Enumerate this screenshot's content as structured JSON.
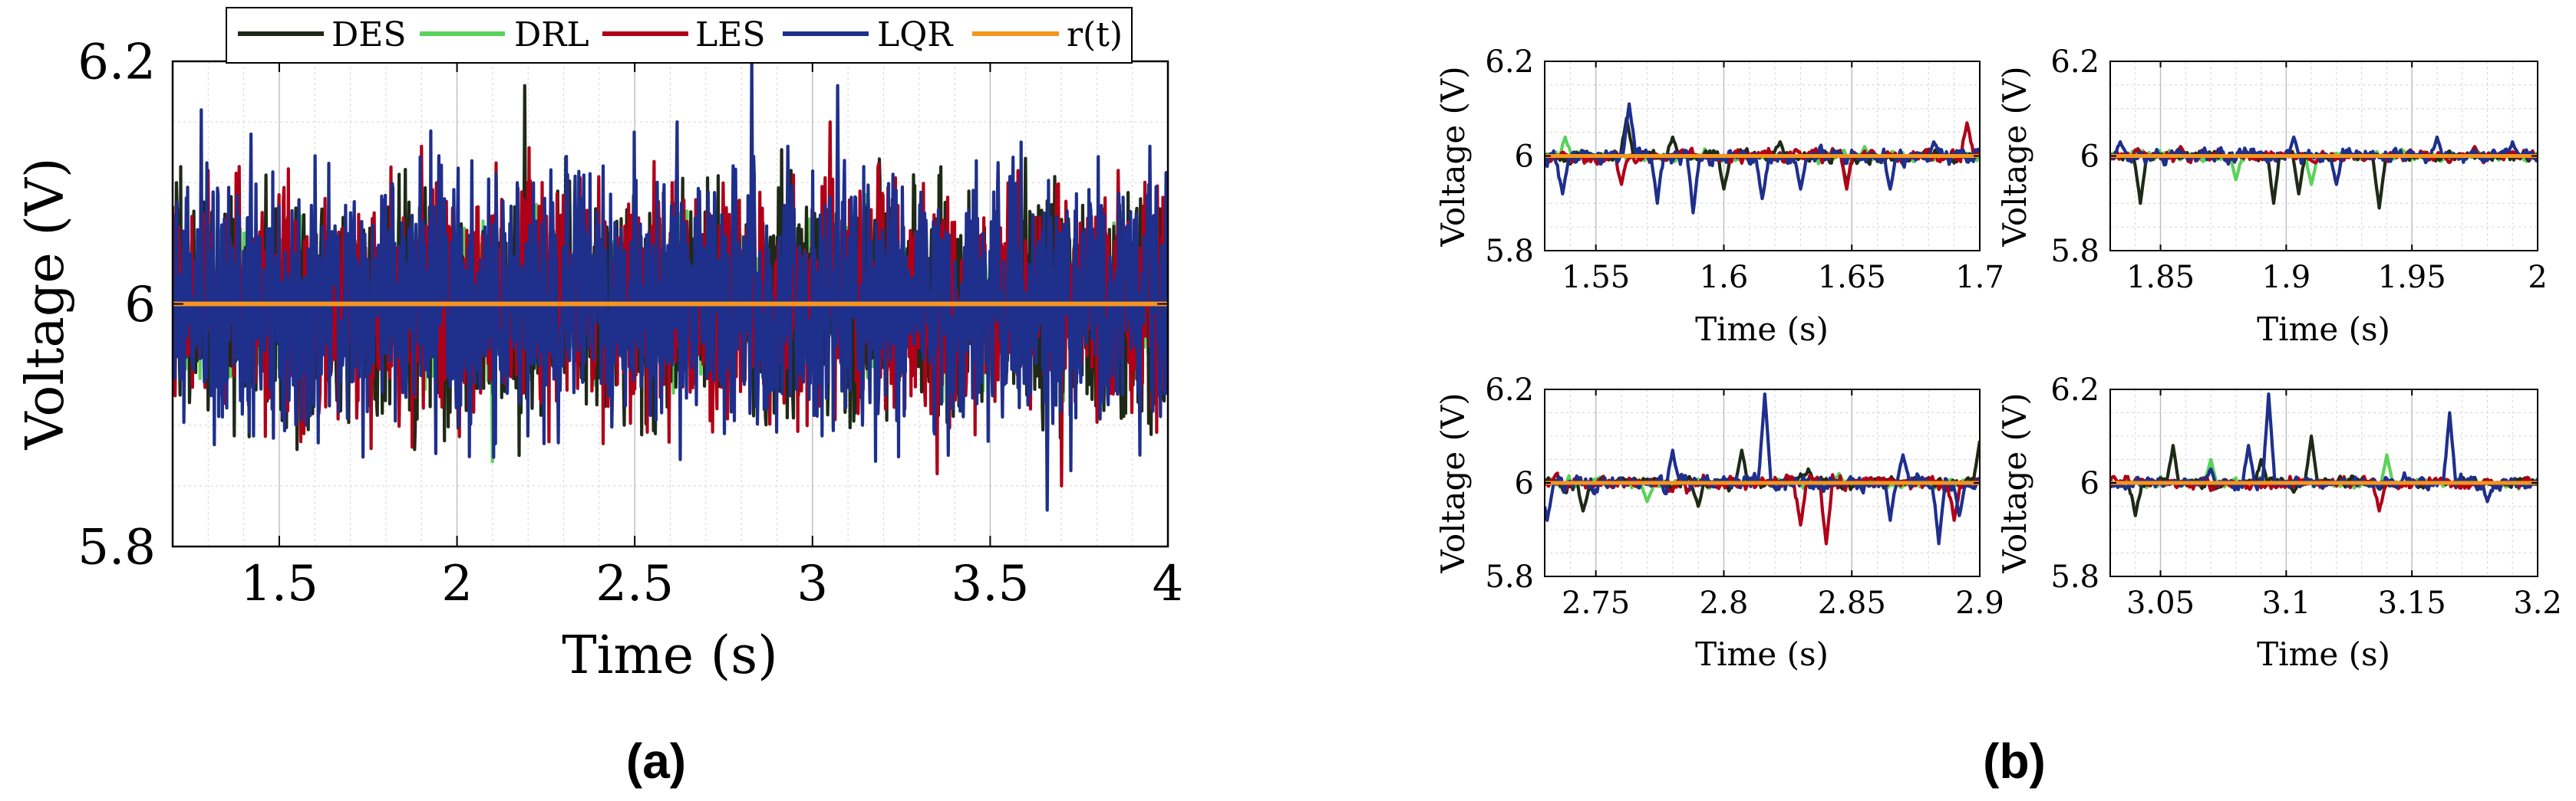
{
  "colors": {
    "DES": "#1e2a16",
    "DRL": "#5ad25a",
    "LES": "#b00018",
    "LQR": "#1e2f8c",
    "ref": "#f5961e"
  },
  "legend": [
    "DES",
    "DRL",
    "LES",
    "LQR",
    "r(t)"
  ],
  "panel_labels": {
    "a": "(a)",
    "b": "(b)"
  },
  "chart_data": [
    {
      "id": "main",
      "type": "line",
      "xlabel": "Time (s)",
      "ylabel": "Voltage (V)",
      "xlim": [
        1.2,
        4.0
      ],
      "ylim": [
        5.8,
        6.2
      ],
      "xticks": [
        1.5,
        2,
        2.5,
        3,
        3.5,
        4
      ],
      "xtick_labels": [
        "1.5",
        "2",
        "2.5",
        "3",
        "3.5",
        "4"
      ],
      "yticks": [
        5.8,
        6,
        6.2
      ],
      "ytick_labels": [
        "5.8",
        "6",
        "6.2"
      ],
      "reference": 6.0,
      "series": [
        {
          "name": "DES",
          "noise": 0.045,
          "peaks": [
            [
              1.21,
              6.1
            ],
            [
              1.55,
              5.88
            ],
            [
              1.88,
              5.88
            ],
            [
              2.19,
              6.18
            ],
            [
              2.47,
              5.9
            ],
            [
              2.94,
              6.11
            ],
            [
              3.12,
              5.91
            ],
            [
              3.6,
              6.12
            ],
            [
              3.99,
              5.92
            ]
          ]
        },
        {
          "name": "DRL",
          "noise": 0.03,
          "peaks": [
            [
              2.1,
              5.87
            ],
            [
              2.8,
              6.05
            ],
            [
              2.99,
              6.07
            ],
            [
              3.15,
              6.09
            ],
            [
              3.7,
              5.93
            ]
          ]
        },
        {
          "name": "LES",
          "noise": 0.045,
          "peaks": [
            [
              1.3,
              6.11
            ],
            [
              1.5,
              6.09
            ],
            [
              1.9,
              6.13
            ],
            [
              2.2,
              6.1
            ],
            [
              3.05,
              6.15
            ],
            [
              3.35,
              5.86
            ],
            [
              3.7,
              5.85
            ],
            [
              3.86,
              6.11
            ]
          ]
        },
        {
          "name": "LQR",
          "noise": 0.05,
          "peaks": [
            [
              1.28,
              6.16
            ],
            [
              1.42,
              6.14
            ],
            [
              2.17,
              6.1
            ],
            [
              2.62,
              6.15
            ],
            [
              2.83,
              6.2
            ],
            [
              2.93,
              6.13
            ],
            [
              3.07,
              6.18
            ],
            [
              3.14,
              5.9
            ],
            [
              3.66,
              5.83
            ],
            [
              3.95,
              6.13
            ]
          ]
        }
      ]
    },
    {
      "id": "zoom1",
      "type": "line",
      "xlabel": "Time (s)",
      "ylabel": "Voltage (V)",
      "xlim": [
        1.53,
        1.7
      ],
      "ylim": [
        5.8,
        6.2
      ],
      "xticks": [
        1.55,
        1.6,
        1.65,
        1.7
      ],
      "xtick_labels": [
        "1.55",
        "1.6",
        "1.65",
        "1.7"
      ],
      "yticks": [
        5.8,
        6,
        6.2
      ],
      "ytick_labels": [
        "5.8",
        "6",
        "6.2"
      ],
      "reference": 6.0,
      "series": [
        {
          "name": "DES",
          "noise": 0.012,
          "peaks": [
            [
              1.562,
              6.08
            ],
            [
              1.58,
              6.04
            ],
            [
              1.6,
              5.93
            ],
            [
              1.622,
              6.03
            ],
            [
              1.648,
              5.94
            ]
          ]
        },
        {
          "name": "DRL",
          "noise": 0.01,
          "peaks": [
            [
              1.538,
              6.04
            ],
            [
              1.655,
              6.02
            ]
          ]
        },
        {
          "name": "LES",
          "noise": 0.013,
          "peaks": [
            [
              1.56,
              5.94
            ],
            [
              1.695,
              6.07
            ],
            [
              1.648,
              5.93
            ]
          ]
        },
        {
          "name": "LQR",
          "noise": 0.016,
          "peaks": [
            [
              1.537,
              5.92
            ],
            [
              1.563,
              6.11
            ],
            [
              1.574,
              5.9
            ],
            [
              1.588,
              5.88
            ],
            [
              1.615,
              5.91
            ],
            [
              1.63,
              5.93
            ],
            [
              1.665,
              5.93
            ],
            [
              1.682,
              6.03
            ]
          ]
        }
      ]
    },
    {
      "id": "zoom2",
      "type": "line",
      "xlabel": "Time (s)",
      "ylabel": "Voltage (V)",
      "xlim": [
        1.83,
        2.0
      ],
      "ylim": [
        5.8,
        6.2
      ],
      "xticks": [
        1.85,
        1.9,
        1.95,
        2
      ],
      "xtick_labels": [
        "1.85",
        "1.9",
        "1.95",
        "2"
      ],
      "yticks": [
        5.8,
        6,
        6.2
      ],
      "ytick_labels": [
        "5.8",
        "6",
        "6.2"
      ],
      "reference": 6.0,
      "series": [
        {
          "name": "DES",
          "noise": 0.01,
          "peaks": [
            [
              1.842,
              5.9
            ],
            [
              1.895,
              5.9
            ],
            [
              1.937,
              5.89
            ],
            [
              1.905,
              5.92
            ]
          ]
        },
        {
          "name": "DRL",
          "noise": 0.008,
          "peaks": [
            [
              1.88,
              5.95
            ],
            [
              1.91,
              5.94
            ]
          ]
        },
        {
          "name": "LES",
          "noise": 0.01,
          "peaks": [
            [
              1.858,
              6.02
            ],
            [
              1.975,
              6.02
            ]
          ]
        },
        {
          "name": "LQR",
          "noise": 0.014,
          "peaks": [
            [
              1.834,
              6.03
            ],
            [
              1.903,
              6.04
            ],
            [
              1.92,
              5.94
            ],
            [
              1.96,
              6.04
            ],
            [
              1.99,
              6.03
            ]
          ]
        }
      ]
    },
    {
      "id": "zoom3",
      "type": "line",
      "xlabel": "Time (s)",
      "ylabel": "Voltage (V)",
      "xlim": [
        2.73,
        2.9
      ],
      "ylim": [
        5.8,
        6.2
      ],
      "xticks": [
        2.75,
        2.8,
        2.85,
        2.9
      ],
      "xtick_labels": [
        "2.75",
        "2.8",
        "2.85",
        "2.9"
      ],
      "yticks": [
        5.8,
        6,
        6.2
      ],
      "ytick_labels": [
        "5.8",
        "6",
        "6.2"
      ],
      "reference": 6.0,
      "series": [
        {
          "name": "DES",
          "noise": 0.012,
          "peaks": [
            [
              2.745,
              5.94
            ],
            [
              2.79,
              5.95
            ],
            [
              2.807,
              6.07
            ],
            [
              2.833,
              6.03
            ],
            [
              2.9,
              6.09
            ]
          ]
        },
        {
          "name": "DRL",
          "noise": 0.01,
          "peaks": [
            [
              2.77,
              5.96
            ],
            [
              2.845,
              6.02
            ]
          ]
        },
        {
          "name": "LES",
          "noise": 0.014,
          "peaks": [
            [
              2.84,
              5.87
            ],
            [
              2.83,
              5.91
            ],
            [
              2.89,
              5.92
            ]
          ]
        },
        {
          "name": "LQR",
          "noise": 0.016,
          "peaks": [
            [
              2.731,
              5.92
            ],
            [
              2.78,
              6.07
            ],
            [
              2.816,
              6.19
            ],
            [
              2.865,
              5.92
            ],
            [
              2.87,
              6.06
            ],
            [
              2.884,
              5.87
            ],
            [
              2.892,
              5.93
            ]
          ]
        }
      ]
    },
    {
      "id": "zoom4",
      "type": "line",
      "xlabel": "Time (s)",
      "ylabel": "Voltage (V)",
      "xlim": [
        3.03,
        3.2
      ],
      "ylim": [
        5.8,
        6.2
      ],
      "xticks": [
        3.05,
        3.1,
        3.15,
        3.2
      ],
      "xtick_labels": [
        "3.05",
        "3.1",
        "3.15",
        "3.2"
      ],
      "yticks": [
        5.8,
        6,
        6.2
      ],
      "ytick_labels": [
        "5.8",
        "6",
        "6.2"
      ],
      "reference": 6.0,
      "series": [
        {
          "name": "DES",
          "noise": 0.01,
          "peaks": [
            [
              3.04,
              5.93
            ],
            [
              3.055,
              6.08
            ],
            [
              3.09,
              6.05
            ],
            [
              3.11,
              6.1
            ],
            [
              3.103,
              5.98
            ]
          ]
        },
        {
          "name": "DRL",
          "noise": 0.01,
          "peaks": [
            [
              3.07,
              6.05
            ],
            [
              3.14,
              6.06
            ]
          ]
        },
        {
          "name": "LES",
          "noise": 0.012,
          "peaks": [
            [
              3.137,
              5.94
            ],
            [
              3.175,
              6.0
            ]
          ]
        },
        {
          "name": "LQR",
          "noise": 0.013,
          "peaks": [
            [
              3.07,
              6.03
            ],
            [
              3.085,
              6.08
            ],
            [
              3.093,
              6.19
            ],
            [
              3.165,
              6.15
            ],
            [
              3.18,
              5.96
            ]
          ]
        }
      ]
    }
  ]
}
